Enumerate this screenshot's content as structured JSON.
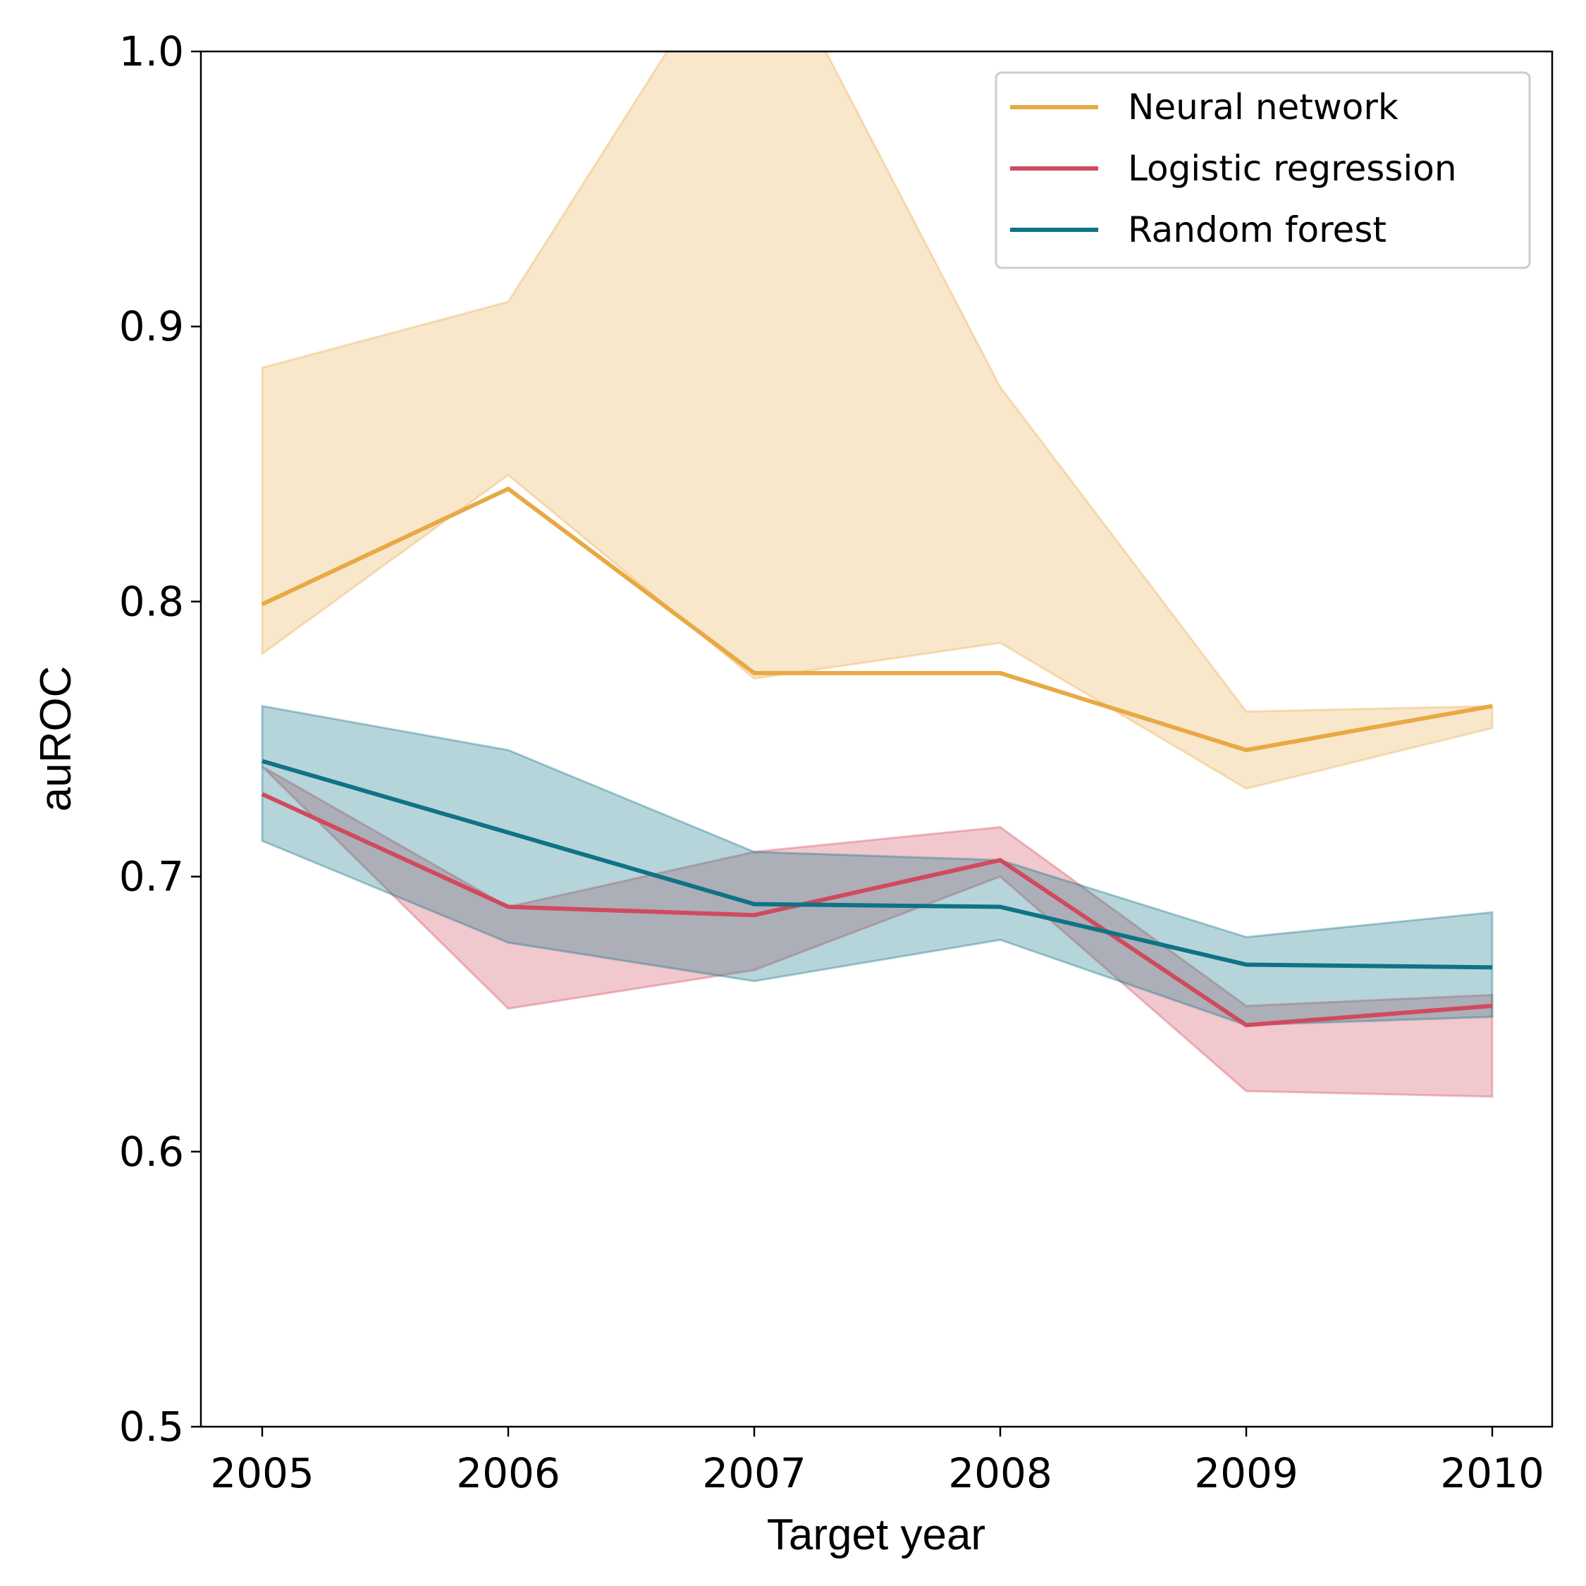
{
  "chart_data": {
    "type": "line",
    "xlabel": "Target year",
    "ylabel": "auROC",
    "ylim": [
      0.5,
      1.0
    ],
    "yticks": [
      "0.5",
      "0.6",
      "0.7",
      "0.8",
      "0.9",
      "1.0"
    ],
    "x": [
      2005,
      2006,
      2007,
      2008,
      2009,
      2010
    ],
    "legend_position": "top-right",
    "grid": false,
    "series": [
      {
        "name": "Neural network",
        "color": "#e8a945",
        "values": [
          0.799,
          0.841,
          0.774,
          0.774,
          0.746,
          0.762
        ],
        "band_lower": [
          0.781,
          0.846,
          0.772,
          0.785,
          0.732,
          0.754
        ],
        "band_upper": [
          0.885,
          0.909,
          1.05,
          0.878,
          0.76,
          0.762
        ]
      },
      {
        "name": "Logistic regression",
        "color": "#d04a5e",
        "values": [
          0.73,
          0.689,
          0.686,
          0.706,
          0.646,
          0.653
        ],
        "band_lower": [
          0.74,
          0.652,
          0.666,
          0.7,
          0.622,
          0.62
        ],
        "band_upper": [
          0.74,
          0.689,
          0.709,
          0.718,
          0.653,
          0.657
        ]
      },
      {
        "name": "Random forest",
        "color": "#0e7385",
        "values": [
          0.742,
          0.716,
          0.69,
          0.689,
          0.668,
          0.667
        ],
        "band_lower": [
          0.713,
          0.676,
          0.662,
          0.677,
          0.646,
          0.649
        ],
        "band_upper": [
          0.762,
          0.746,
          0.709,
          0.706,
          0.678,
          0.687
        ]
      }
    ]
  }
}
